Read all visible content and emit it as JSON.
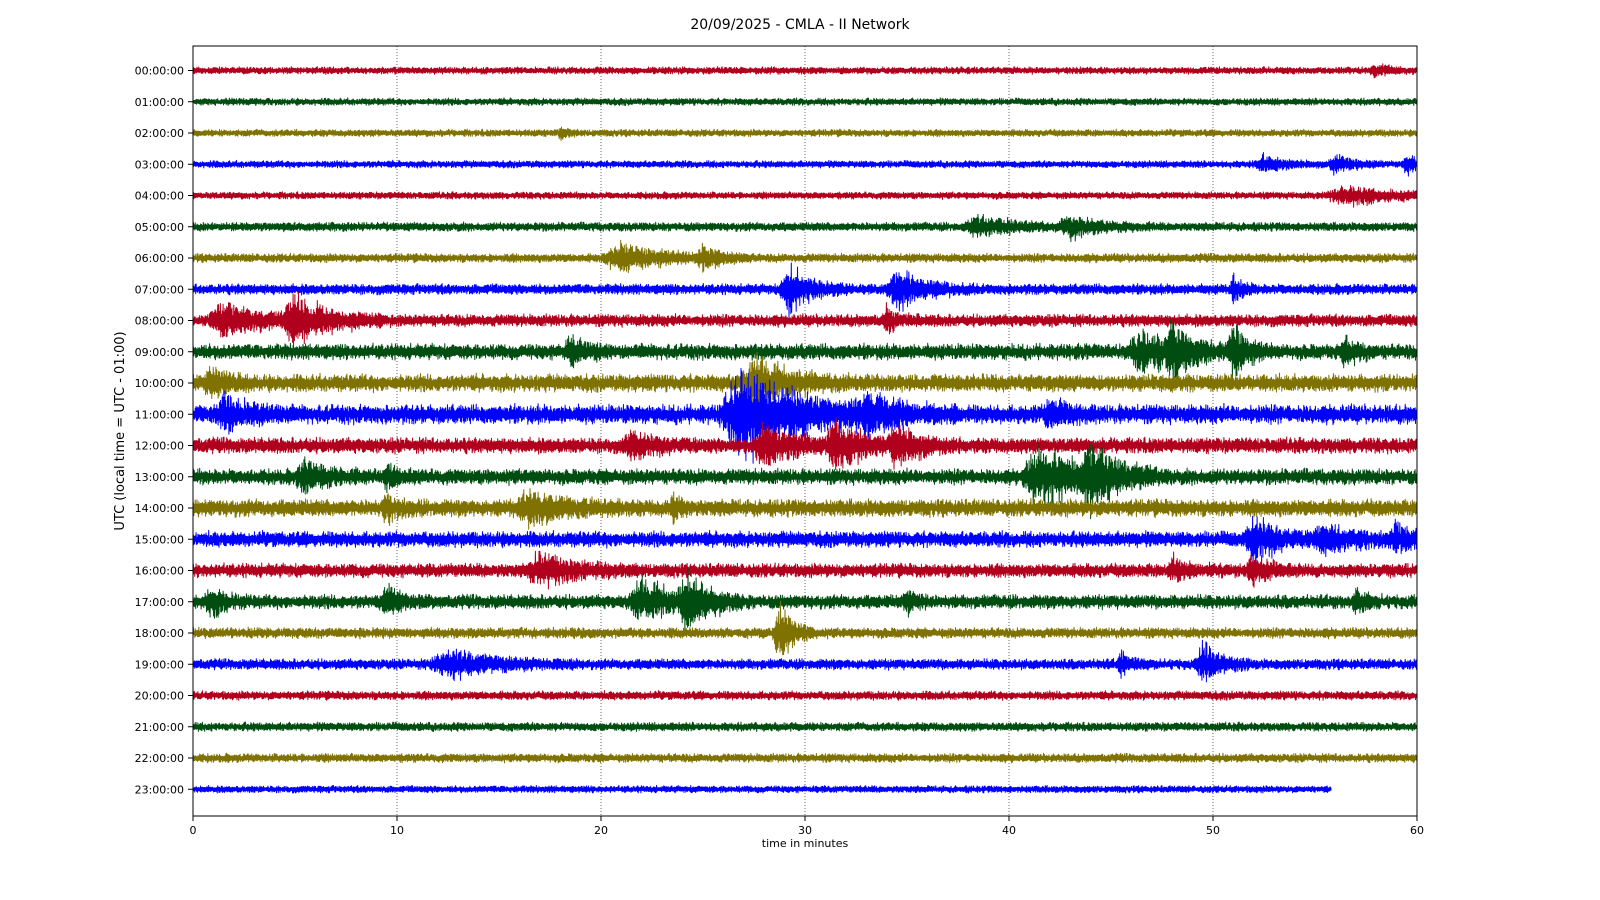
{
  "chart_data": {
    "type": "line",
    "subtype": "helicorder",
    "title": "20/09/2025 - CMLA - II Network",
    "xlabel": "time in minutes",
    "ylabel": "UTC (local time = UTC - 01:00)",
    "xlim": [
      0,
      60
    ],
    "x_ticks": [
      0,
      10,
      20,
      30,
      40,
      50,
      60
    ],
    "grid": "vertical dotted lines at x ticks",
    "row_labels": [
      "00:00:00",
      "01:00:00",
      "02:00:00",
      "03:00:00",
      "04:00:00",
      "05:00:00",
      "06:00:00",
      "07:00:00",
      "08:00:00",
      "09:00:00",
      "10:00:00",
      "11:00:00",
      "12:00:00",
      "13:00:00",
      "14:00:00",
      "15:00:00",
      "16:00:00",
      "17:00:00",
      "18:00:00",
      "19:00:00",
      "20:00:00",
      "21:00:00",
      "22:00:00",
      "23:00:00"
    ],
    "trace_colors": [
      "#b0001e",
      "#004d12",
      "#7f7200",
      "#0000ff"
    ],
    "traces": [
      {
        "label": "00:00:00",
        "noise": 4,
        "end_minute": 60,
        "events": [
          {
            "t": 58,
            "amp": 7,
            "dur": 1.2
          }
        ]
      },
      {
        "label": "01:00:00",
        "noise": 4,
        "end_minute": 60,
        "events": []
      },
      {
        "label": "02:00:00",
        "noise": 4,
        "end_minute": 60,
        "events": [
          {
            "t": 18,
            "amp": 7,
            "dur": 0.6
          }
        ]
      },
      {
        "label": "03:00:00",
        "noise": 4,
        "end_minute": 60,
        "events": [
          {
            "t": 52.5,
            "amp": 9,
            "dur": 2
          },
          {
            "t": 56,
            "amp": 12,
            "dur": 1.5
          },
          {
            "t": 59.5,
            "amp": 10,
            "dur": 1
          }
        ]
      },
      {
        "label": "04:00:00",
        "noise": 4,
        "end_minute": 60,
        "events": [
          {
            "t": 56.5,
            "amp": 12,
            "dur": 4
          }
        ]
      },
      {
        "label": "05:00:00",
        "noise": 5,
        "end_minute": 60,
        "events": [
          {
            "t": 38.5,
            "amp": 12,
            "dur": 3
          },
          {
            "t": 43,
            "amp": 14,
            "dur": 2.5
          }
        ]
      },
      {
        "label": "06:00:00",
        "noise": 5,
        "end_minute": 60,
        "events": [
          {
            "t": 21,
            "amp": 16,
            "dur": 4
          },
          {
            "t": 25,
            "amp": 12,
            "dur": 1.5
          }
        ]
      },
      {
        "label": "07:00:00",
        "noise": 6,
        "end_minute": 60,
        "events": [
          {
            "t": 29.2,
            "amp": 30,
            "dur": 2
          },
          {
            "t": 34.5,
            "amp": 22,
            "dur": 2.5
          },
          {
            "t": 51,
            "amp": 16,
            "dur": 0.7
          }
        ]
      },
      {
        "label": "08:00:00",
        "noise": 7,
        "end_minute": 60,
        "events": [
          {
            "t": 1.5,
            "amp": 22,
            "dur": 3
          },
          {
            "t": 5,
            "amp": 28,
            "dur": 3
          },
          {
            "t": 34,
            "amp": 12,
            "dur": 1
          }
        ]
      },
      {
        "label": "09:00:00",
        "noise": 9,
        "end_minute": 60,
        "events": [
          {
            "t": 46.5,
            "amp": 24,
            "dur": 3
          },
          {
            "t": 48,
            "amp": 30,
            "dur": 1.5
          },
          {
            "t": 51,
            "amp": 34,
            "dur": 1.2
          },
          {
            "t": 18.5,
            "amp": 14,
            "dur": 1.5
          },
          {
            "t": 56.5,
            "amp": 16,
            "dur": 1
          }
        ]
      },
      {
        "label": "10:00:00",
        "noise": 10,
        "end_minute": 60,
        "events": [
          {
            "t": 0.8,
            "amp": 18,
            "dur": 1.5
          },
          {
            "t": 27.5,
            "amp": 28,
            "dur": 3
          }
        ]
      },
      {
        "label": "11:00:00",
        "noise": 11,
        "end_minute": 60,
        "events": [
          {
            "t": 27,
            "amp": 55,
            "dur": 5
          },
          {
            "t": 33,
            "amp": 18,
            "dur": 3
          },
          {
            "t": 42,
            "amp": 16,
            "dur": 1.5
          },
          {
            "t": 1.5,
            "amp": 18,
            "dur": 2
          }
        ]
      },
      {
        "label": "12:00:00",
        "noise": 9,
        "end_minute": 60,
        "events": [
          {
            "t": 28,
            "amp": 24,
            "dur": 2.5
          },
          {
            "t": 31.5,
            "amp": 32,
            "dur": 2
          },
          {
            "t": 34.5,
            "amp": 24,
            "dur": 2
          },
          {
            "t": 21.5,
            "amp": 14,
            "dur": 2
          }
        ]
      },
      {
        "label": "13:00:00",
        "noise": 9,
        "end_minute": 60,
        "events": [
          {
            "t": 41.5,
            "amp": 34,
            "dur": 4
          },
          {
            "t": 44,
            "amp": 32,
            "dur": 2
          },
          {
            "t": 5.5,
            "amp": 18,
            "dur": 2
          },
          {
            "t": 9.5,
            "amp": 14,
            "dur": 1
          }
        ]
      },
      {
        "label": "14:00:00",
        "noise": 10,
        "end_minute": 60,
        "events": [
          {
            "t": 16.5,
            "amp": 18,
            "dur": 3
          },
          {
            "t": 9.5,
            "amp": 14,
            "dur": 1
          },
          {
            "t": 23.5,
            "amp": 12,
            "dur": 0.6
          }
        ]
      },
      {
        "label": "15:00:00",
        "noise": 9,
        "end_minute": 60,
        "events": [
          {
            "t": 52,
            "amp": 26,
            "dur": 2
          },
          {
            "t": 55.5,
            "amp": 16,
            "dur": 2.5
          },
          {
            "t": 59,
            "amp": 14,
            "dur": 1.5
          }
        ]
      },
      {
        "label": "16:00:00",
        "noise": 8,
        "end_minute": 60,
        "events": [
          {
            "t": 17,
            "amp": 18,
            "dur": 3
          },
          {
            "t": 52,
            "amp": 16,
            "dur": 1.5
          },
          {
            "t": 48,
            "amp": 12,
            "dur": 1.2
          }
        ]
      },
      {
        "label": "17:00:00",
        "noise": 8,
        "end_minute": 60,
        "events": [
          {
            "t": 22,
            "amp": 24,
            "dur": 3
          },
          {
            "t": 24.2,
            "amp": 28,
            "dur": 2
          },
          {
            "t": 0.8,
            "amp": 18,
            "dur": 1.2
          },
          {
            "t": 9.5,
            "amp": 16,
            "dur": 1.5
          },
          {
            "t": 35,
            "amp": 14,
            "dur": 0.8
          },
          {
            "t": 57,
            "amp": 14,
            "dur": 0.8
          }
        ]
      },
      {
        "label": "18:00:00",
        "noise": 6,
        "end_minute": 60,
        "events": [
          {
            "t": 28.7,
            "amp": 38,
            "dur": 1.2
          }
        ]
      },
      {
        "label": "19:00:00",
        "noise": 6,
        "end_minute": 60,
        "events": [
          {
            "t": 12.5,
            "amp": 16,
            "dur": 4
          },
          {
            "t": 49.5,
            "amp": 26,
            "dur": 1.5
          },
          {
            "t": 45.5,
            "amp": 14,
            "dur": 1
          }
        ]
      },
      {
        "label": "20:00:00",
        "noise": 5,
        "end_minute": 60,
        "events": []
      },
      {
        "label": "21:00:00",
        "noise": 5,
        "end_minute": 60,
        "events": []
      },
      {
        "label": "22:00:00",
        "noise": 5,
        "end_minute": 60,
        "events": []
      },
      {
        "label": "23:00:00",
        "noise": 4,
        "end_minute": 55.8,
        "events": []
      }
    ]
  }
}
